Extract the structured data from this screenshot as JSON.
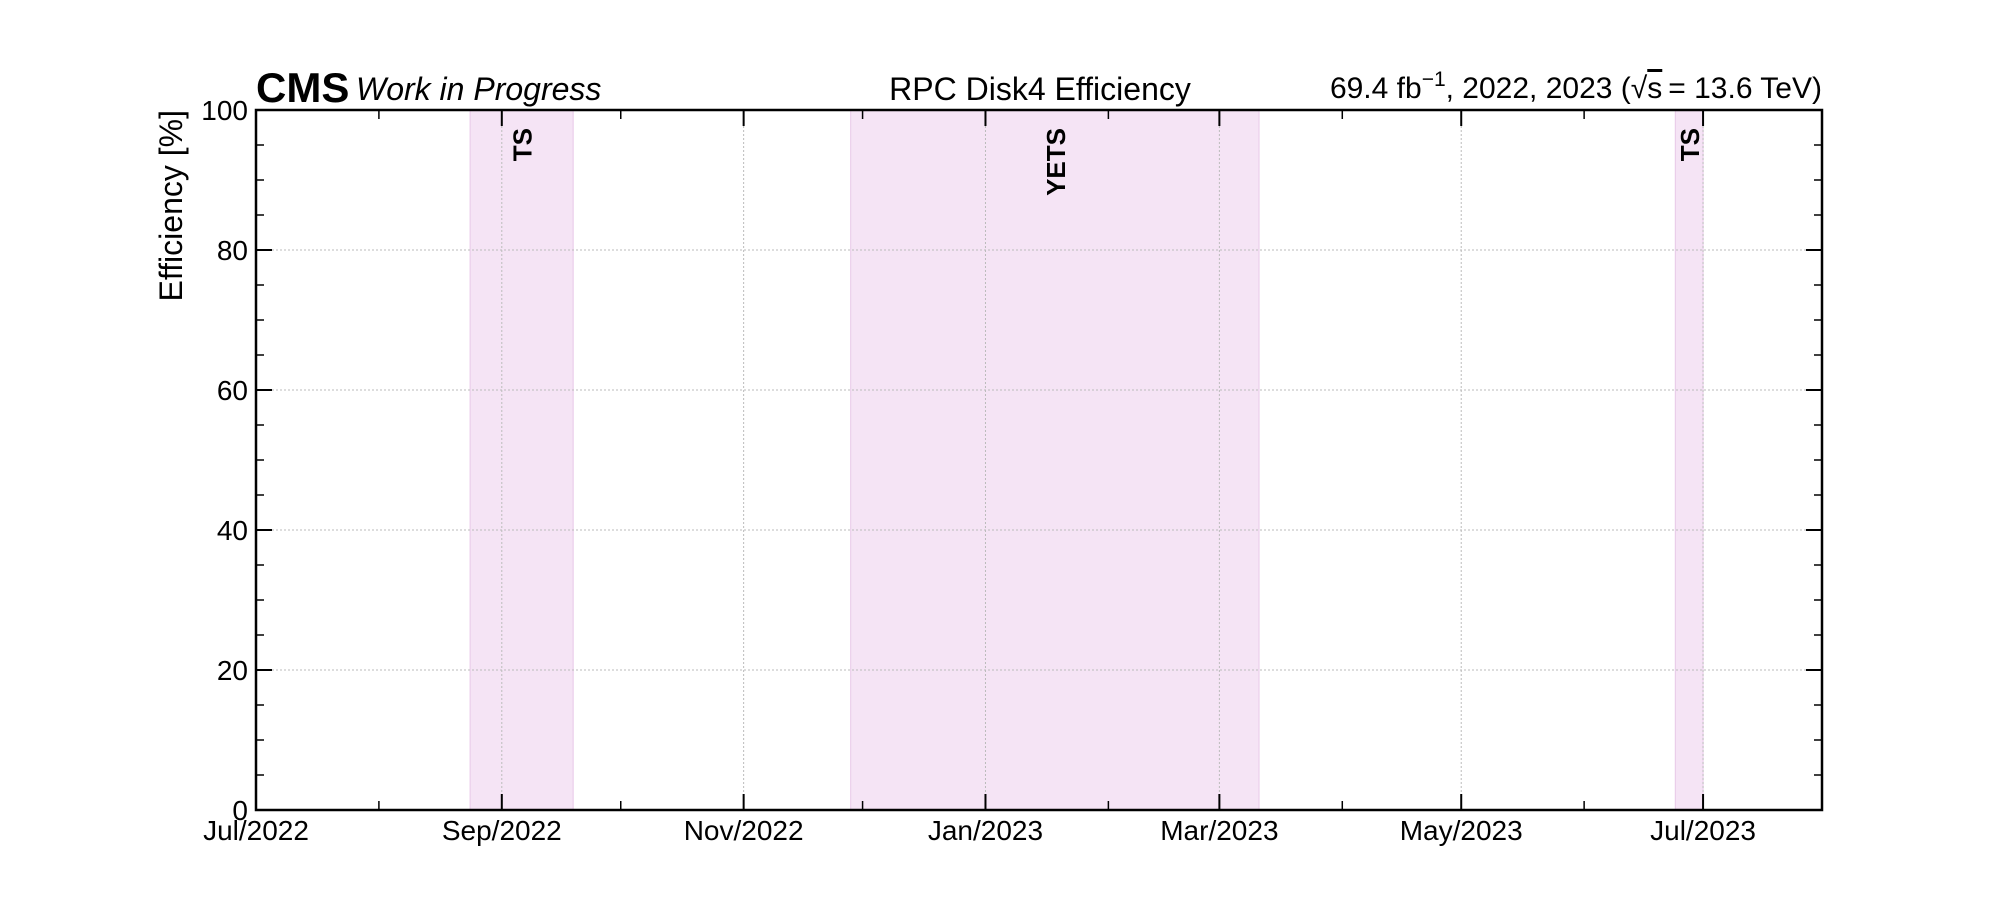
{
  "chart_data": {
    "type": "scatter",
    "experiment": "CMS",
    "status": "Work in Progress",
    "title": "RPC Disk4 Efficiency",
    "lumi": {
      "value": "69.4 fb",
      "value_exp": "−1",
      "years": ", 2022, 2023 (",
      "sqrt_label": "s",
      "energy": "= 13.6 TeV)"
    },
    "ylabel": "Efficiency [%]",
    "xlabel": "",
    "ylim": [
      0,
      100
    ],
    "xlim": [
      "2022-07-01",
      "2023-07-31"
    ],
    "x_ticks": [
      "2022-07-01",
      "2022-09-01",
      "2022-11-01",
      "2023-01-01",
      "2023-03-01",
      "2023-05-01",
      "2023-07-01"
    ],
    "x_tick_labels": [
      "Jul/2022",
      "Sep/2022",
      "Nov/2022",
      "Jan/2023",
      "Mar/2023",
      "May/2023",
      "Jul/2023"
    ],
    "y_ticks": [
      0,
      20,
      40,
      60,
      80,
      100
    ],
    "y_tick_labels": [
      "0",
      "20",
      "40",
      "60",
      "80",
      "100"
    ],
    "grid": true,
    "series": [],
    "shaded_periods": [
      {
        "label": "TS",
        "start": "2022-08-24",
        "end": "2022-09-19"
      },
      {
        "label": "YETS",
        "start": "2022-11-28",
        "end": "2023-03-11"
      },
      {
        "label": "TS",
        "start": "2023-06-24",
        "end": "2023-07-01"
      }
    ],
    "colors": {
      "band_fill": "#f5e4f5",
      "band_edge": "#e8c8e8",
      "band_label": "#c000c0",
      "grid": "#bbbbbb"
    }
  }
}
